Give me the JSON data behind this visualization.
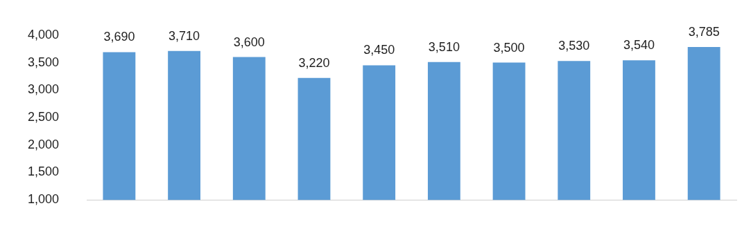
{
  "chart_data": {
    "type": "bar",
    "categories": [
      null,
      null,
      null,
      null,
      null,
      null,
      null,
      null,
      null,
      null
    ],
    "values": [
      3690,
      3710,
      3600,
      3220,
      3450,
      3510,
      3500,
      3530,
      3540,
      3785
    ],
    "value_labels": [
      "3,690",
      "3,710",
      "3,600",
      "3,220",
      "3,450",
      "3,510",
      "3,500",
      "3,530",
      "3,540",
      "3,785"
    ],
    "color": "#5b9bd5",
    "ylim": [
      1000,
      4000
    ],
    "yticks": [
      {
        "value": 1000,
        "label": "1,000"
      },
      {
        "value": 1500,
        "label": "1,500"
      },
      {
        "value": 2000,
        "label": "2,000"
      },
      {
        "value": 2500,
        "label": "2,500"
      },
      {
        "value": 3000,
        "label": "3,000"
      },
      {
        "value": 3500,
        "label": "3,500"
      },
      {
        "value": 4000,
        "label": "4,000"
      }
    ],
    "grid": false
  }
}
